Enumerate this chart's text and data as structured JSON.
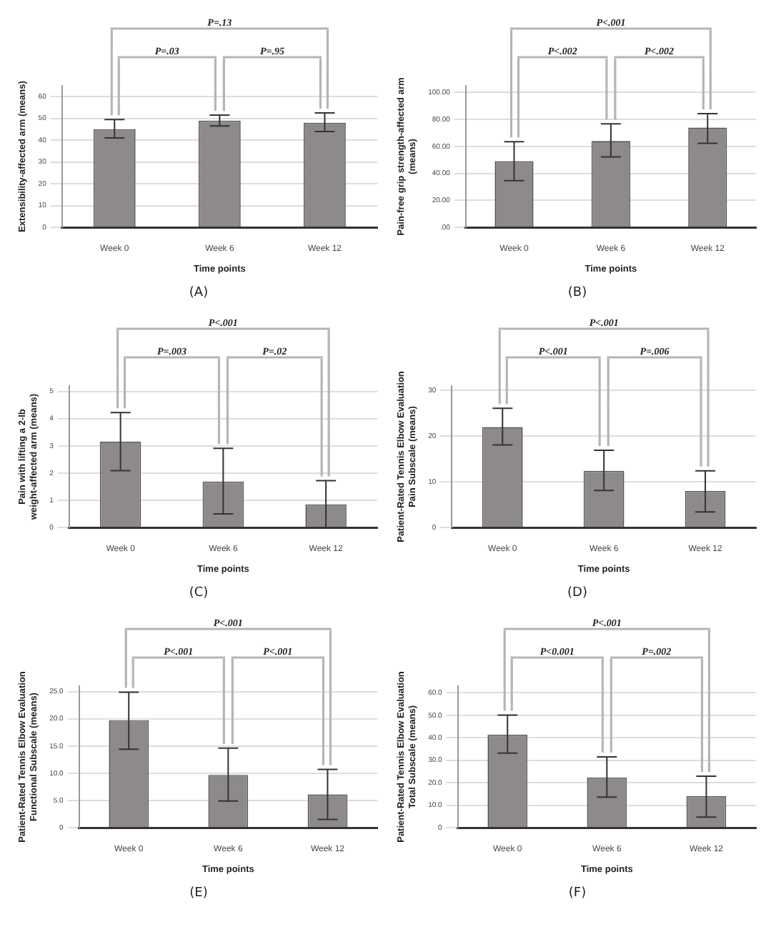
{
  "chart_data": [
    {
      "type": "bar",
      "categories": [
        "Week 0",
        "Week 6",
        "Week 12"
      ],
      "values": [
        45,
        49,
        48
      ],
      "errors": [
        [
          41,
          49.5
        ],
        [
          46.5,
          51.5
        ],
        [
          44,
          52.5
        ]
      ],
      "color": "#8e8a8a",
      "xlabel": "Time points",
      "ylabel": "Extensibility-affected arm (means)",
      "ylim": [
        0,
        65
      ],
      "yticks": [
        0,
        10,
        20,
        30,
        40,
        50,
        60
      ],
      "grid": "y",
      "annotations": [
        "P=.13",
        "P=.03",
        "P=.95",
        "(A)"
      ]
    },
    {
      "type": "bar",
      "categories": [
        "Week 0",
        "Week 6",
        "Week 12"
      ],
      "values": [
        49,
        64,
        74
      ],
      "errors": [
        [
          34.6,
          63.5
        ],
        [
          52.2,
          76.7
        ],
        [
          62.3,
          84.3
        ]
      ],
      "color": "#8e8a8a",
      "xlabel": "Time points",
      "ylabel": "Pain-free grip strength-affected arm (means)",
      "ylim": [
        0,
        105
      ],
      "yticks": [
        {
          "value": 0,
          "label": ".00"
        },
        {
          "value": 20,
          "label": "20.00"
        },
        {
          "value": 40,
          "label": "40.00"
        },
        {
          "value": 60,
          "label": "60.00"
        },
        {
          "value": 80,
          "label": "80.00"
        },
        {
          "value": 100,
          "label": "100.00"
        }
      ],
      "grid": "y",
      "annotations": [
        "P<.001",
        "P<.002",
        "P<.002",
        "(B)"
      ]
    },
    {
      "type": "bar",
      "categories": [
        "Week 0",
        "Week 6",
        "Week 12"
      ],
      "values": [
        3.15,
        1.69,
        0.85
      ],
      "errors": [
        [
          2.09,
          4.22
        ],
        [
          0.5,
          2.91
        ],
        [
          0,
          1.72
        ]
      ],
      "color": "#8e8a8a",
      "xlabel": "Time points",
      "ylabel": "Pain with lifting a 2-lb weight-affected arm (means)",
      "ylim": [
        0,
        5.2
      ],
      "yticks": [
        0,
        1,
        2,
        3,
        4,
        5
      ],
      "grid": "y",
      "annotations": [
        "P<.001",
        "P=.003",
        "P=.02",
        "(C)"
      ]
    },
    {
      "type": "bar",
      "categories": [
        "Week 0",
        "Week 6",
        "Week 12"
      ],
      "values": [
        22,
        12.4,
        8
      ],
      "errors": [
        [
          18.1,
          26.1
        ],
        [
          8.1,
          16.9
        ],
        [
          3.4,
          12.4
        ]
      ],
      "color": "#8e8a8a",
      "xlabel": "Time points",
      "ylabel": "Patient-Rated Tennis Elbow Evaluation Pain Subscale (means)",
      "ylim": [
        0,
        31
      ],
      "yticks": [
        0,
        10,
        20,
        30
      ],
      "grid": "y",
      "annotations": [
        "P<.001",
        "P<.001",
        "P=.006",
        "(D)"
      ]
    },
    {
      "type": "bar",
      "categories": [
        "Week 0",
        "Week 6",
        "Week 12"
      ],
      "values": [
        19.7,
        9.7,
        6.1
      ],
      "errors": [
        [
          14.4,
          24.9
        ],
        [
          4.9,
          14.6
        ],
        [
          1.5,
          10.7
        ]
      ],
      "color": "#8e8a8a",
      "xlabel": "Time points",
      "ylabel": "Patient-Rated Tennis Elbow Evaluation Functional Subscale (means)",
      "ylim": [
        0,
        26
      ],
      "yticks": [
        0,
        {
          "value": 5,
          "label": "5.0"
        },
        {
          "value": 10,
          "label": "10.0"
        },
        {
          "value": 15,
          "label": "15.0"
        },
        {
          "value": 20,
          "label": "20.0"
        },
        {
          "value": 25,
          "label": "25.0"
        }
      ],
      "grid": "y",
      "annotations": [
        "P<.001",
        "P<.001",
        "P<.001",
        "(E)"
      ]
    },
    {
      "type": "bar",
      "categories": [
        "Week 0",
        "Week 6",
        "Week 12"
      ],
      "values": [
        41.4,
        22.3,
        14
      ],
      "errors": [
        [
          33.2,
          50.1
        ],
        [
          13.6,
          31.5
        ],
        [
          4.7,
          22.9
        ]
      ],
      "color": "#8e8a8a",
      "xlabel": "Time points",
      "ylabel": "Patient-Rated Tennis Elbow Evaluation Total Subscale (means)",
      "ylim": [
        0,
        63
      ],
      "yticks": [
        0,
        {
          "value": 10,
          "label": "10.0"
        },
        {
          "value": 20,
          "label": "20.0"
        },
        {
          "value": 30,
          "label": "30.0"
        },
        {
          "value": 40,
          "label": "40.0"
        },
        {
          "value": 50,
          "label": "50.0"
        },
        {
          "value": 60,
          "label": "60.0"
        }
      ],
      "grid": "y",
      "annotations": [
        "P<.001",
        "P<0.001",
        "P=.002",
        "(F)"
      ]
    }
  ]
}
